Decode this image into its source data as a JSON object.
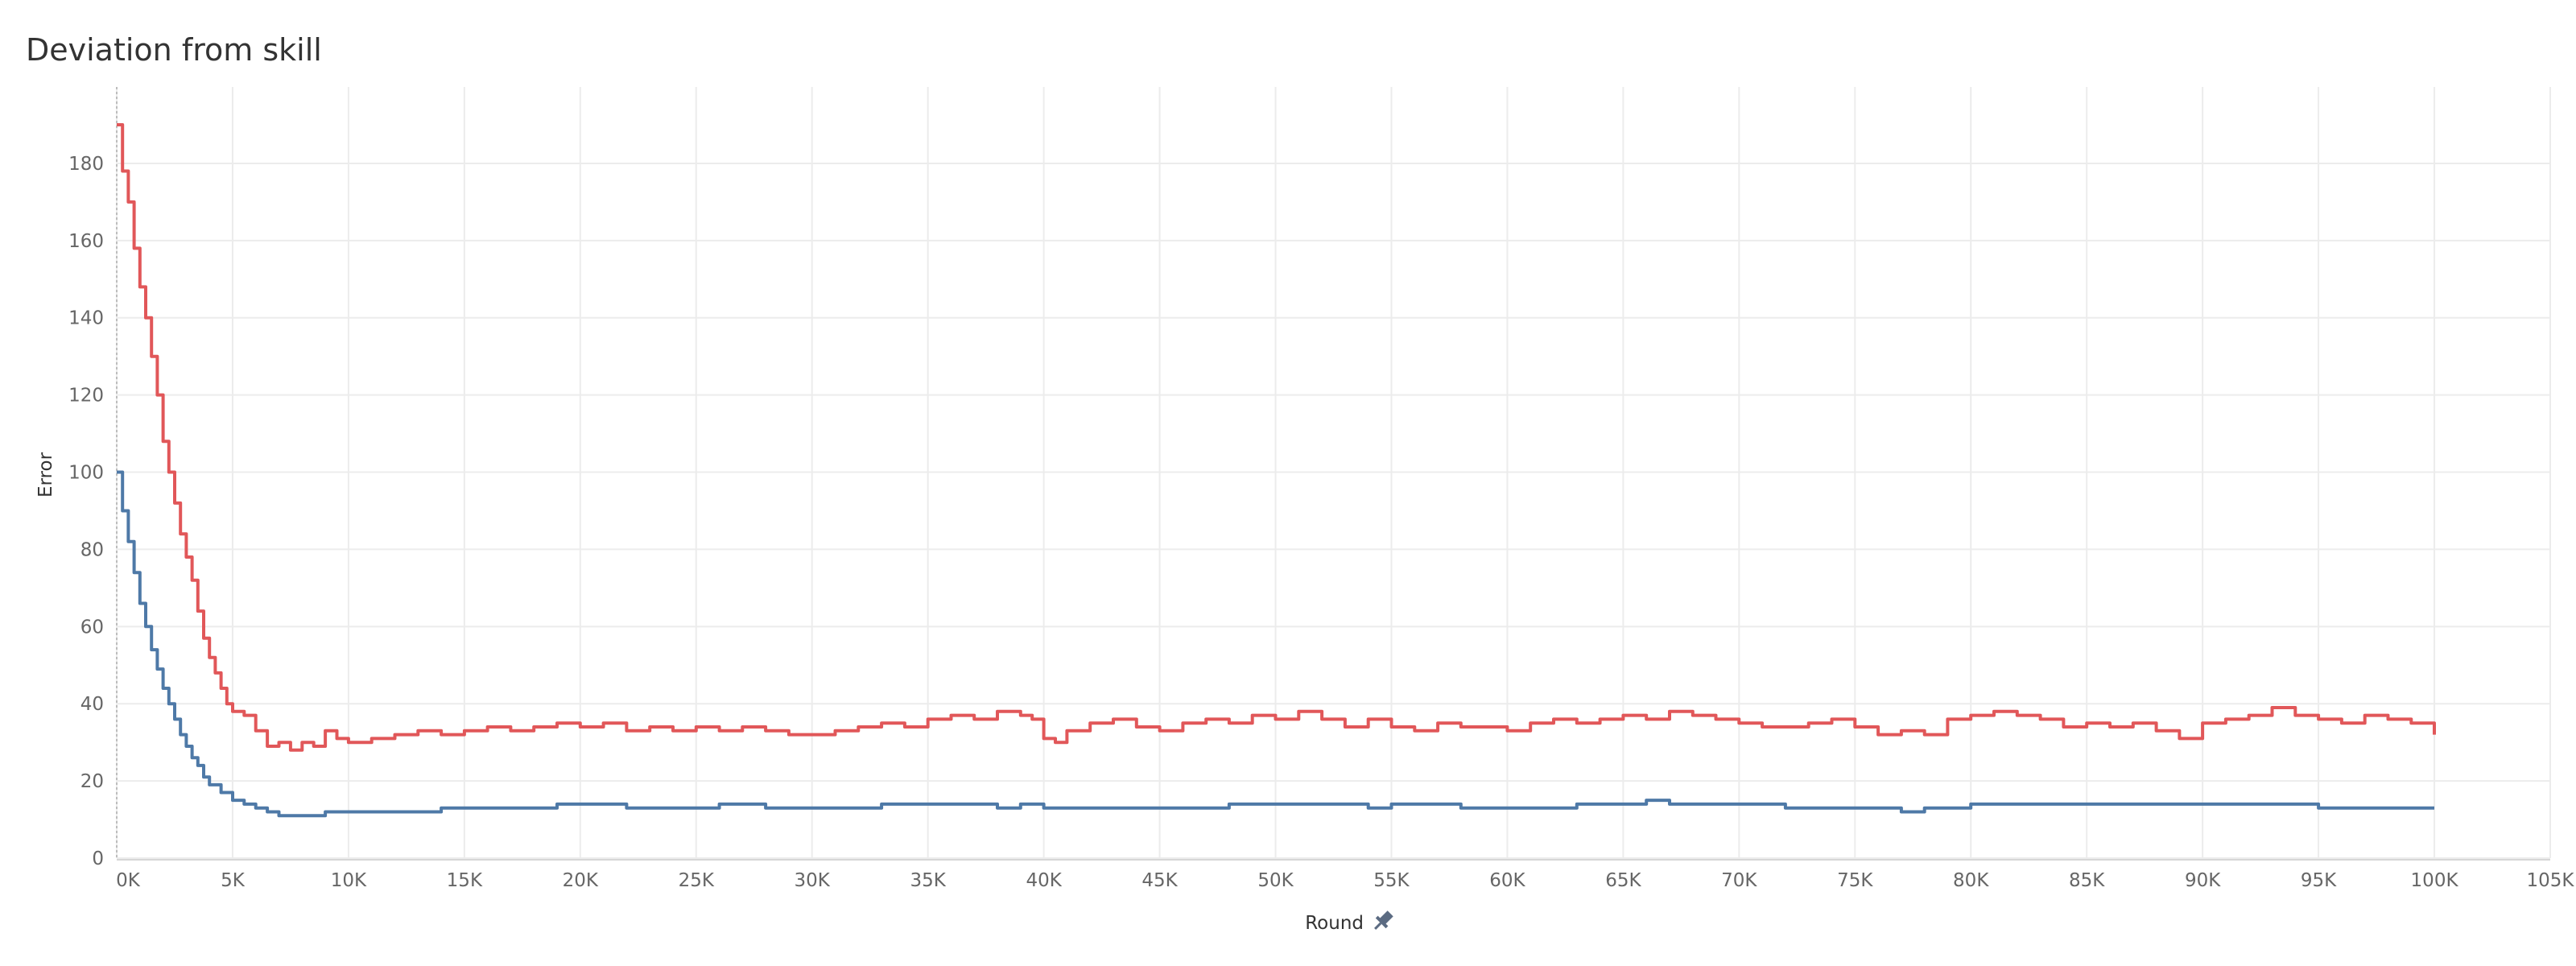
{
  "chart_data": {
    "type": "line",
    "title": "Deviation from skill",
    "xlabel": "Round",
    "ylabel": "Error",
    "xlim": [
      0,
      105000
    ],
    "ylim": [
      0,
      190
    ],
    "x_ticks": [
      0,
      5000,
      10000,
      15000,
      20000,
      25000,
      30000,
      35000,
      40000,
      45000,
      50000,
      55000,
      60000,
      65000,
      70000,
      75000,
      80000,
      85000,
      90000,
      95000,
      100000,
      105000
    ],
    "x_tick_labels": [
      "0K",
      "5K",
      "10K",
      "15K",
      "20K",
      "25K",
      "30K",
      "35K",
      "40K",
      "45K",
      "50K",
      "55K",
      "60K",
      "65K",
      "70K",
      "75K",
      "80K",
      "85K",
      "90K",
      "95K",
      "100K",
      "105K"
    ],
    "y_ticks": [
      0,
      20,
      40,
      60,
      80,
      100,
      120,
      140,
      160,
      180
    ],
    "y_tick_labels": [
      "0",
      "20",
      "40",
      "60",
      "80",
      "100",
      "120",
      "140",
      "160",
      "180"
    ],
    "grid": true,
    "series": [
      {
        "color": "#e15759",
        "points": [
          [
            0,
            190
          ],
          [
            250,
            178
          ],
          [
            500,
            170
          ],
          [
            750,
            158
          ],
          [
            1000,
            148
          ],
          [
            1250,
            140
          ],
          [
            1500,
            130
          ],
          [
            1750,
            120
          ],
          [
            2000,
            108
          ],
          [
            2250,
            100
          ],
          [
            2500,
            92
          ],
          [
            2750,
            84
          ],
          [
            3000,
            78
          ],
          [
            3250,
            72
          ],
          [
            3500,
            64
          ],
          [
            3750,
            57
          ],
          [
            4000,
            52
          ],
          [
            4250,
            48
          ],
          [
            4500,
            44
          ],
          [
            4750,
            40
          ],
          [
            5000,
            38
          ],
          [
            5500,
            37
          ],
          [
            6000,
            33
          ],
          [
            6500,
            29
          ],
          [
            7000,
            30
          ],
          [
            7500,
            28
          ],
          [
            8000,
            30
          ],
          [
            8500,
            29
          ],
          [
            9000,
            33
          ],
          [
            9500,
            31
          ],
          [
            10000,
            30
          ],
          [
            11000,
            31
          ],
          [
            12000,
            32
          ],
          [
            13000,
            33
          ],
          [
            14000,
            32
          ],
          [
            15000,
            33
          ],
          [
            16000,
            34
          ],
          [
            17000,
            33
          ],
          [
            18000,
            34
          ],
          [
            19000,
            35
          ],
          [
            20000,
            34
          ],
          [
            21000,
            35
          ],
          [
            22000,
            33
          ],
          [
            23000,
            34
          ],
          [
            24000,
            33
          ],
          [
            25000,
            34
          ],
          [
            26000,
            33
          ],
          [
            27000,
            34
          ],
          [
            28000,
            33
          ],
          [
            29000,
            32
          ],
          [
            30000,
            32
          ],
          [
            31000,
            33
          ],
          [
            32000,
            34
          ],
          [
            33000,
            35
          ],
          [
            34000,
            34
          ],
          [
            35000,
            36
          ],
          [
            36000,
            37
          ],
          [
            37000,
            36
          ],
          [
            38000,
            38
          ],
          [
            39000,
            37
          ],
          [
            39500,
            36
          ],
          [
            40000,
            31
          ],
          [
            40500,
            30
          ],
          [
            41000,
            33
          ],
          [
            42000,
            35
          ],
          [
            43000,
            36
          ],
          [
            44000,
            34
          ],
          [
            45000,
            33
          ],
          [
            46000,
            35
          ],
          [
            47000,
            36
          ],
          [
            48000,
            35
          ],
          [
            49000,
            37
          ],
          [
            50000,
            36
          ],
          [
            51000,
            38
          ],
          [
            52000,
            36
          ],
          [
            53000,
            34
          ],
          [
            54000,
            36
          ],
          [
            55000,
            34
          ],
          [
            56000,
            33
          ],
          [
            57000,
            35
          ],
          [
            58000,
            34
          ],
          [
            59000,
            34
          ],
          [
            60000,
            33
          ],
          [
            61000,
            35
          ],
          [
            62000,
            36
          ],
          [
            63000,
            35
          ],
          [
            64000,
            36
          ],
          [
            65000,
            37
          ],
          [
            66000,
            36
          ],
          [
            67000,
            38
          ],
          [
            68000,
            37
          ],
          [
            69000,
            36
          ],
          [
            70000,
            35
          ],
          [
            71000,
            34
          ],
          [
            72000,
            34
          ],
          [
            73000,
            35
          ],
          [
            74000,
            36
          ],
          [
            75000,
            34
          ],
          [
            76000,
            32
          ],
          [
            77000,
            33
          ],
          [
            78000,
            32
          ],
          [
            79000,
            36
          ],
          [
            80000,
            37
          ],
          [
            81000,
            38
          ],
          [
            82000,
            37
          ],
          [
            83000,
            36
          ],
          [
            84000,
            34
          ],
          [
            85000,
            35
          ],
          [
            86000,
            34
          ],
          [
            87000,
            35
          ],
          [
            88000,
            33
          ],
          [
            89000,
            31
          ],
          [
            90000,
            35
          ],
          [
            91000,
            36
          ],
          [
            92000,
            37
          ],
          [
            93000,
            39
          ],
          [
            94000,
            37
          ],
          [
            95000,
            36
          ],
          [
            96000,
            35
          ],
          [
            97000,
            37
          ],
          [
            98000,
            36
          ],
          [
            99000,
            35
          ],
          [
            100000,
            32
          ]
        ]
      },
      {
        "color": "#4e79a7",
        "points": [
          [
            0,
            100
          ],
          [
            250,
            90
          ],
          [
            500,
            82
          ],
          [
            750,
            74
          ],
          [
            1000,
            66
          ],
          [
            1250,
            60
          ],
          [
            1500,
            54
          ],
          [
            1750,
            49
          ],
          [
            2000,
            44
          ],
          [
            2250,
            40
          ],
          [
            2500,
            36
          ],
          [
            2750,
            32
          ],
          [
            3000,
            29
          ],
          [
            3250,
            26
          ],
          [
            3500,
            24
          ],
          [
            3750,
            21
          ],
          [
            4000,
            19
          ],
          [
            4500,
            17
          ],
          [
            5000,
            15
          ],
          [
            5500,
            14
          ],
          [
            6000,
            13
          ],
          [
            6500,
            12
          ],
          [
            7000,
            11
          ],
          [
            7500,
            11
          ],
          [
            8000,
            11
          ],
          [
            9000,
            12
          ],
          [
            10000,
            12
          ],
          [
            11000,
            12
          ],
          [
            12000,
            12
          ],
          [
            13000,
            12
          ],
          [
            14000,
            13
          ],
          [
            15000,
            13
          ],
          [
            16000,
            13
          ],
          [
            17000,
            13
          ],
          [
            18000,
            13
          ],
          [
            19000,
            14
          ],
          [
            20000,
            14
          ],
          [
            21000,
            14
          ],
          [
            22000,
            13
          ],
          [
            23000,
            13
          ],
          [
            24000,
            13
          ],
          [
            25000,
            13
          ],
          [
            26000,
            14
          ],
          [
            27000,
            14
          ],
          [
            28000,
            13
          ],
          [
            29000,
            13
          ],
          [
            30000,
            13
          ],
          [
            31000,
            13
          ],
          [
            32000,
            13
          ],
          [
            33000,
            14
          ],
          [
            34000,
            14
          ],
          [
            35000,
            14
          ],
          [
            36000,
            14
          ],
          [
            37000,
            14
          ],
          [
            38000,
            13
          ],
          [
            39000,
            14
          ],
          [
            40000,
            13
          ],
          [
            41000,
            13
          ],
          [
            42000,
            13
          ],
          [
            43000,
            13
          ],
          [
            44000,
            13
          ],
          [
            45000,
            13
          ],
          [
            46000,
            13
          ],
          [
            47000,
            13
          ],
          [
            48000,
            14
          ],
          [
            49000,
            14
          ],
          [
            50000,
            14
          ],
          [
            51000,
            14
          ],
          [
            52000,
            14
          ],
          [
            53000,
            14
          ],
          [
            54000,
            13
          ],
          [
            55000,
            14
          ],
          [
            56000,
            14
          ],
          [
            57000,
            14
          ],
          [
            58000,
            13
          ],
          [
            59000,
            13
          ],
          [
            60000,
            13
          ],
          [
            61000,
            13
          ],
          [
            62000,
            13
          ],
          [
            63000,
            14
          ],
          [
            64000,
            14
          ],
          [
            65000,
            14
          ],
          [
            66000,
            15
          ],
          [
            67000,
            14
          ],
          [
            68000,
            14
          ],
          [
            69000,
            14
          ],
          [
            70000,
            14
          ],
          [
            71000,
            14
          ],
          [
            72000,
            13
          ],
          [
            73000,
            13
          ],
          [
            74000,
            13
          ],
          [
            75000,
            13
          ],
          [
            76000,
            13
          ],
          [
            77000,
            12
          ],
          [
            78000,
            13
          ],
          [
            79000,
            13
          ],
          [
            80000,
            14
          ],
          [
            81000,
            14
          ],
          [
            82000,
            14
          ],
          [
            83000,
            14
          ],
          [
            84000,
            14
          ],
          [
            85000,
            14
          ],
          [
            86000,
            14
          ],
          [
            87000,
            14
          ],
          [
            88000,
            14
          ],
          [
            89000,
            14
          ],
          [
            90000,
            14
          ],
          [
            91000,
            14
          ],
          [
            92000,
            14
          ],
          [
            93000,
            14
          ],
          [
            94000,
            14
          ],
          [
            95000,
            13
          ],
          [
            96000,
            13
          ],
          [
            97000,
            13
          ],
          [
            98000,
            13
          ],
          [
            99000,
            13
          ],
          [
            100000,
            13
          ]
        ]
      }
    ]
  }
}
